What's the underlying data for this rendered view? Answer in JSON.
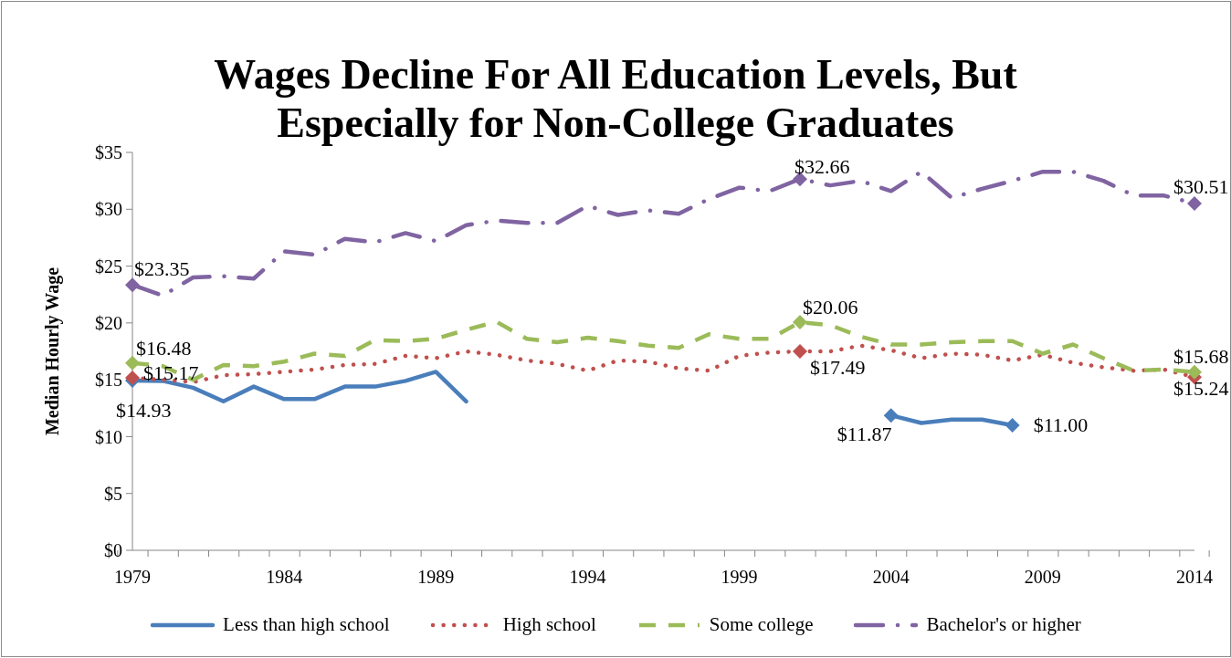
{
  "chart_data": {
    "type": "line",
    "title": "Wages Decline For All Education Levels, But Especially for Non-College Graduates",
    "ylabel": "Median Hourly Wage",
    "categories": [
      "1979",
      null,
      null,
      null,
      null,
      "1984",
      null,
      null,
      null,
      null,
      "1989",
      null,
      null,
      null,
      null,
      "1994",
      null,
      null,
      null,
      null,
      "1999",
      null,
      null,
      null,
      null,
      "2004",
      null,
      null,
      null,
      null,
      "2009",
      null,
      null,
      null,
      null,
      "2014"
    ],
    "series": [
      {
        "name": "Less than high school",
        "color": "#4a7ebb",
        "line_style": "solid",
        "values": [
          14.93,
          14.9,
          14.3,
          13.1,
          14.4,
          13.3,
          13.3,
          14.4,
          14.4,
          14.9,
          15.7,
          13.1,
          null,
          null,
          null,
          null,
          null,
          null,
          null,
          null,
          null,
          null,
          null,
          null,
          null,
          11.87,
          11.2,
          11.5,
          11.5,
          11.0,
          null,
          null,
          null,
          null,
          null,
          null
        ],
        "value_labels": [
          "$14.93",
          null,
          null,
          null,
          null,
          null,
          null,
          null,
          null,
          null,
          null,
          null,
          null,
          null,
          null,
          null,
          null,
          null,
          null,
          null,
          null,
          null,
          null,
          null,
          null,
          "$11.87",
          null,
          null,
          null,
          "$11.00",
          null,
          null,
          null,
          null,
          null,
          null
        ]
      },
      {
        "name": "High school",
        "color": "#c0504d",
        "line_style": "dotted",
        "values": [
          15.17,
          15.0,
          14.8,
          15.4,
          15.5,
          15.7,
          15.9,
          16.3,
          16.4,
          17.1,
          16.9,
          17.5,
          17.2,
          16.7,
          16.4,
          15.8,
          16.7,
          16.6,
          16.0,
          15.8,
          17.1,
          17.4,
          17.49,
          17.5,
          18.0,
          17.6,
          16.9,
          17.3,
          17.2,
          16.7,
          17.2,
          16.5,
          16.1,
          15.8,
          15.9,
          15.24
        ],
        "value_labels": [
          "$15.17",
          null,
          null,
          null,
          null,
          null,
          null,
          null,
          null,
          null,
          null,
          null,
          null,
          null,
          null,
          null,
          null,
          null,
          null,
          null,
          null,
          null,
          "$17.49",
          null,
          null,
          null,
          null,
          null,
          null,
          null,
          null,
          null,
          null,
          null,
          null,
          "$15.24"
        ]
      },
      {
        "name": "Some college",
        "color": "#9bbb59",
        "line_style": "dashed",
        "values": [
          16.48,
          16.2,
          15.0,
          16.3,
          16.2,
          16.6,
          17.3,
          17.1,
          18.5,
          18.4,
          18.6,
          19.4,
          20.1,
          18.6,
          18.3,
          18.7,
          18.4,
          18.0,
          17.8,
          19.0,
          18.6,
          18.6,
          20.06,
          19.8,
          18.8,
          18.1,
          18.1,
          18.3,
          18.4,
          18.4,
          17.3,
          18.1,
          16.9,
          15.8,
          15.9,
          15.68
        ],
        "value_labels": [
          "$16.48",
          null,
          null,
          null,
          null,
          null,
          null,
          null,
          null,
          null,
          null,
          null,
          null,
          null,
          null,
          null,
          null,
          null,
          null,
          null,
          null,
          null,
          "$20.06",
          null,
          null,
          null,
          null,
          null,
          null,
          null,
          null,
          null,
          null,
          null,
          null,
          "$15.68"
        ]
      },
      {
        "name": "Bachelor's or higher",
        "color": "#8064a2",
        "line_style": "dashdot",
        "values": [
          23.35,
          22.4,
          24.0,
          24.1,
          23.9,
          26.3,
          26.0,
          27.4,
          27.1,
          27.9,
          27.2,
          28.6,
          29.0,
          28.8,
          28.8,
          30.3,
          29.5,
          29.9,
          29.6,
          30.9,
          31.9,
          31.6,
          32.66,
          32.1,
          32.5,
          31.6,
          33.3,
          31.0,
          31.8,
          32.5,
          33.3,
          33.3,
          32.5,
          31.2,
          31.2,
          30.51
        ],
        "value_labels": [
          "$23.35",
          null,
          null,
          null,
          null,
          null,
          null,
          null,
          null,
          null,
          null,
          null,
          null,
          null,
          null,
          null,
          null,
          null,
          null,
          null,
          null,
          null,
          "$32.66",
          null,
          null,
          null,
          null,
          null,
          null,
          null,
          null,
          null,
          null,
          null,
          null,
          "$30.51"
        ]
      }
    ],
    "ylim": [
      0,
      35
    ],
    "yticks": [
      {
        "value": 0,
        "label": "$0"
      },
      {
        "value": 5,
        "label": "$5"
      },
      {
        "value": 10,
        "label": "$10"
      },
      {
        "value": 15,
        "label": "$15"
      },
      {
        "value": 20,
        "label": "$20"
      },
      {
        "value": 25,
        "label": "$25"
      },
      {
        "value": 30,
        "label": "$30"
      },
      {
        "value": 35,
        "label": "$35"
      }
    ],
    "legend": "bottom"
  }
}
